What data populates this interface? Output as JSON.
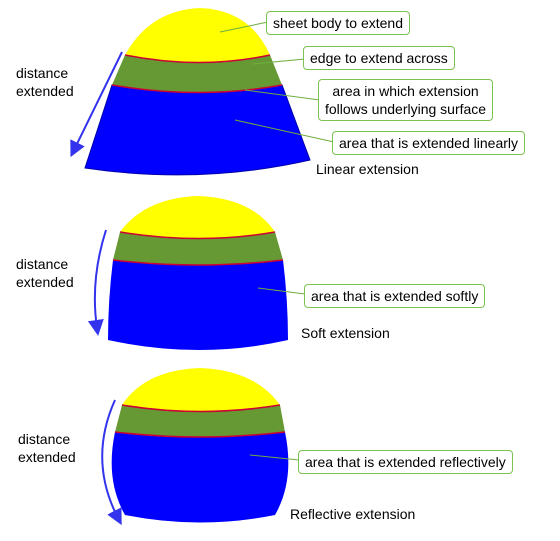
{
  "panels": [
    {
      "caption": "Linear extension",
      "distance_label": [
        "distance",
        "extended"
      ],
      "callouts": [
        "sheet body to extend",
        "edge to extend across",
        "area in which extension follows underlying surface",
        "area that is extended linearly"
      ],
      "callout_lines": [
        [
          "area in which extension",
          "follows underlying surface"
        ]
      ]
    },
    {
      "caption": "Soft extension",
      "distance_label": [
        "distance",
        "extended"
      ],
      "callouts": [
        "area that is extended softly"
      ]
    },
    {
      "caption": "Reflective extension",
      "distance_label": [
        "distance",
        "extended"
      ],
      "callouts": [
        "area that is extended reflectively"
      ]
    }
  ],
  "colors": {
    "sheet": "#ffff00",
    "band": "#669933",
    "extended": "#0000ff",
    "edge": "#cc0033",
    "arrow": "#3333ee",
    "callout_border": "#7cc24e",
    "leader": "#6fae3f"
  }
}
